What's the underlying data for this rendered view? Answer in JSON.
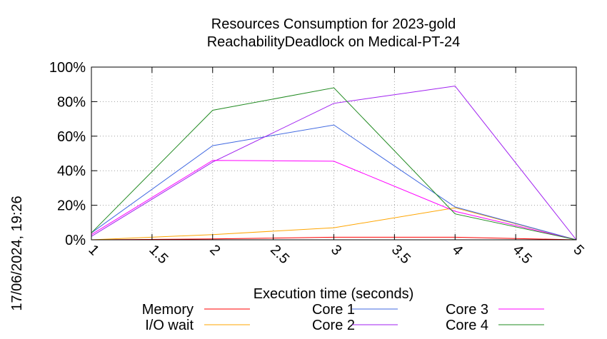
{
  "chart_data": {
    "type": "line",
    "title": "Resources Consumption for 2023-gold",
    "subtitle": "ReachabilityDeadlock on Medical-PT-24",
    "xlabel": "Execution time (seconds)",
    "ylabel": "",
    "timestamp": "17/06/2024, 19:26",
    "xlim": [
      1,
      5
    ],
    "ylim": [
      0,
      100
    ],
    "x_ticks": [
      "1",
      "1.5",
      "2",
      "2.5",
      "3",
      "3.5",
      "4",
      "4.5",
      "5"
    ],
    "y_ticks": [
      "0%",
      "20%",
      "40%",
      "60%",
      "80%",
      "100%"
    ],
    "grid": true,
    "legend_position": "bottom",
    "series": [
      {
        "name": "Memory",
        "color": "#ff0000",
        "x": [
          1,
          2,
          3,
          4,
          5
        ],
        "y": [
          0,
          0.5,
          1.5,
          1.5,
          0
        ]
      },
      {
        "name": "I/O wait",
        "color": "#ffa500",
        "x": [
          1,
          2,
          3,
          4,
          5
        ],
        "y": [
          0,
          3,
          7,
          18.5,
          0
        ]
      },
      {
        "name": "Core 1",
        "color": "#4169e1",
        "x": [
          1,
          2,
          3,
          4,
          5
        ],
        "y": [
          4,
          54.5,
          66.5,
          19,
          0
        ]
      },
      {
        "name": "Core 2",
        "color": "#a020f0",
        "x": [
          1,
          2,
          3,
          4,
          5
        ],
        "y": [
          2,
          45,
          79,
          89,
          0
        ]
      },
      {
        "name": "Core 3",
        "color": "#ff00ff",
        "x": [
          1,
          2,
          3,
          4,
          5
        ],
        "y": [
          3,
          46,
          45.5,
          16.5,
          0
        ]
      },
      {
        "name": "Core 4",
        "color": "#228b22",
        "x": [
          1,
          2,
          3,
          4,
          5
        ],
        "y": [
          4,
          75,
          88,
          15,
          0
        ]
      }
    ]
  }
}
